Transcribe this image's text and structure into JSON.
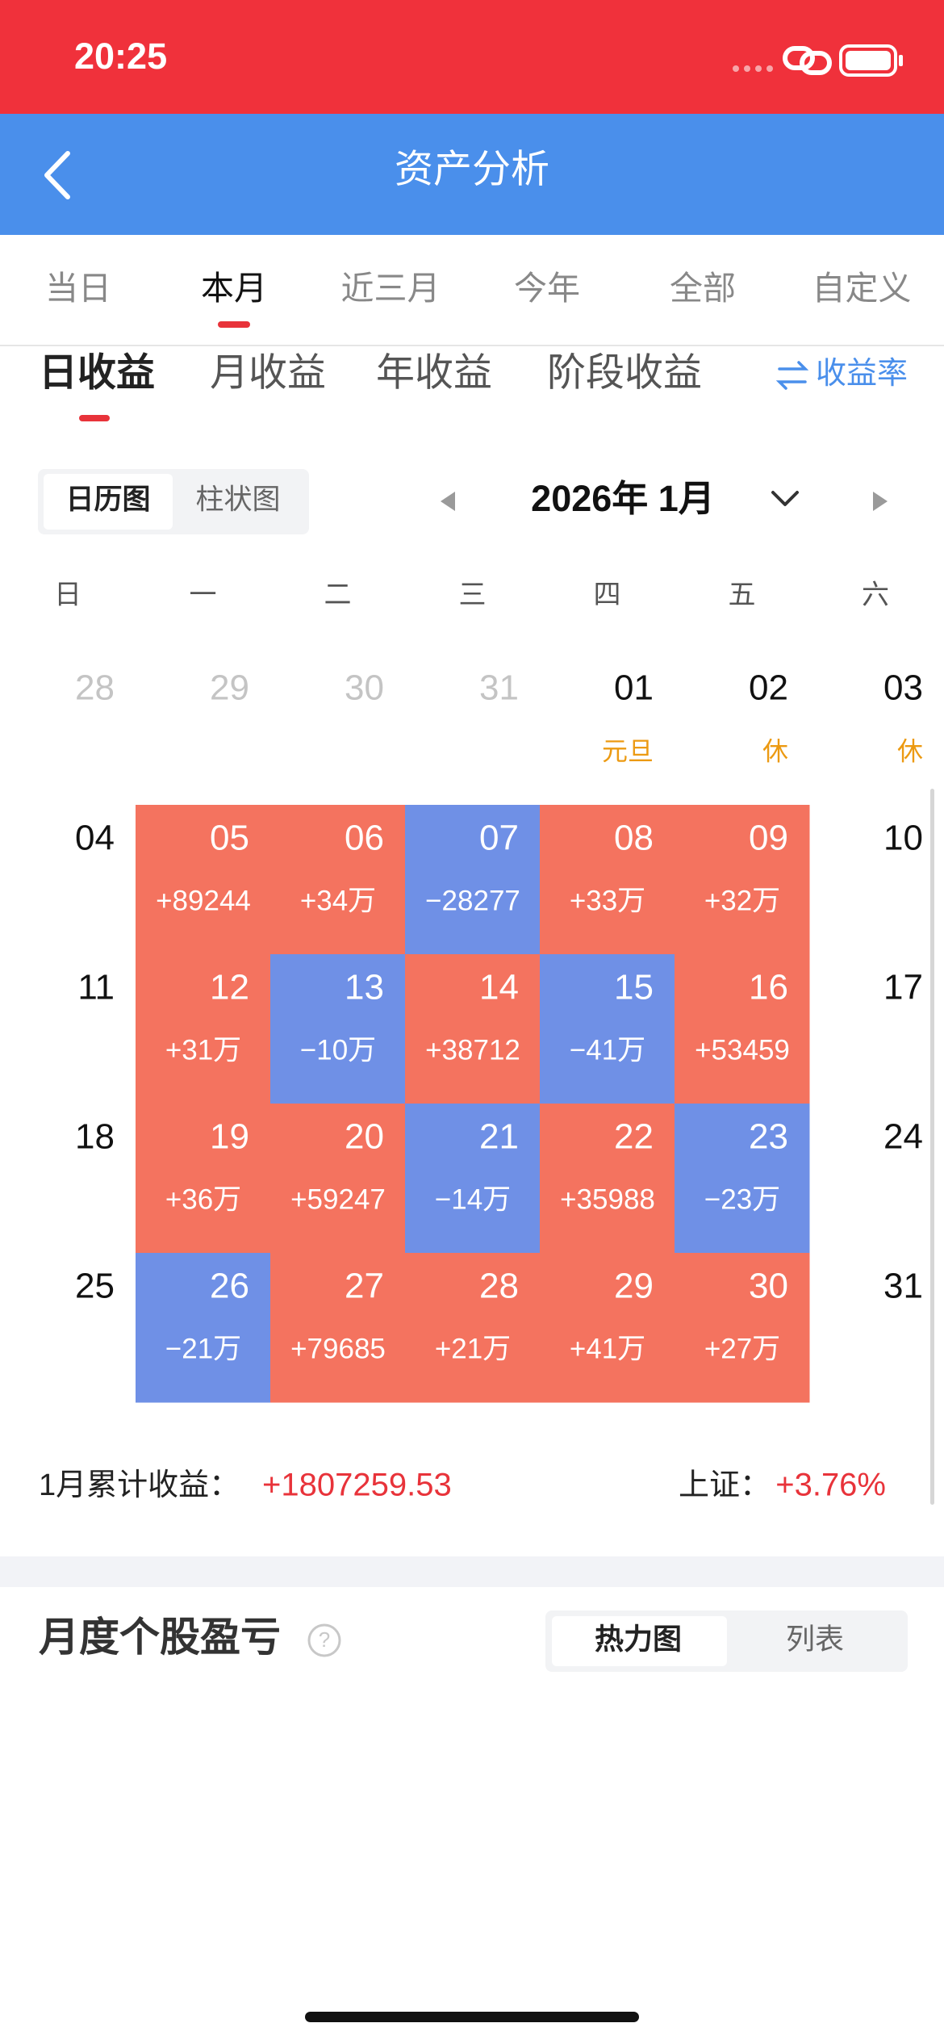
{
  "status_bar": {
    "time": "20:25"
  },
  "header": {
    "title": "资产分析"
  },
  "period_tabs": {
    "items": [
      "当日",
      "本月",
      "近三月",
      "今年",
      "全部",
      "自定义"
    ],
    "active": 1
  },
  "profit_tabs": {
    "items": [
      "日收益",
      "月收益",
      "年收益",
      "阶段收益"
    ],
    "active": 0,
    "toggle": "收益率"
  },
  "view_toggle": {
    "items": [
      "日历图",
      "柱状图"
    ],
    "active": 0
  },
  "month_selector": {
    "label": "2026年 1月"
  },
  "calendar": {
    "weekdays": [
      "日",
      "一",
      "二",
      "三",
      "四",
      "五",
      "六"
    ],
    "weeks": [
      [
        {
          "day": "28",
          "muted": true
        },
        {
          "day": "29",
          "muted": true
        },
        {
          "day": "30",
          "muted": true
        },
        {
          "day": "31",
          "muted": true
        },
        {
          "day": "01",
          "note": "元旦"
        },
        {
          "day": "02",
          "note": "休"
        },
        {
          "day": "03",
          "note": "休"
        }
      ],
      [
        {
          "day": "04"
        },
        {
          "day": "05",
          "value": "+89244"
        },
        {
          "day": "06",
          "value": "+34万"
        },
        {
          "day": "07",
          "value": "−28277"
        },
        {
          "day": "08",
          "value": "+33万"
        },
        {
          "day": "09",
          "value": "+32万"
        },
        {
          "day": "10"
        }
      ],
      [
        {
          "day": "11"
        },
        {
          "day": "12",
          "value": "+31万"
        },
        {
          "day": "13",
          "value": "−10万"
        },
        {
          "day": "14",
          "value": "+38712"
        },
        {
          "day": "15",
          "value": "−41万"
        },
        {
          "day": "16",
          "value": "+53459"
        },
        {
          "day": "17"
        }
      ],
      [
        {
          "day": "18"
        },
        {
          "day": "19",
          "value": "+36万"
        },
        {
          "day": "20",
          "value": "+59247"
        },
        {
          "day": "21",
          "value": "−14万"
        },
        {
          "day": "22",
          "value": "+35988"
        },
        {
          "day": "23",
          "value": "−23万"
        },
        {
          "day": "24"
        }
      ],
      [
        {
          "day": "25"
        },
        {
          "day": "26",
          "value": "−21万"
        },
        {
          "day": "27",
          "value": "+79685"
        },
        {
          "day": "28",
          "value": "+21万"
        },
        {
          "day": "29",
          "value": "+41万"
        },
        {
          "day": "30",
          "value": "+27万"
        },
        {
          "day": "31"
        }
      ]
    ]
  },
  "summary": {
    "label": "1月累计收益：",
    "value": "+1807259.53",
    "index_label": "上证：",
    "index_value": "+3.76%"
  },
  "section": {
    "title": "月度个股盈亏",
    "toggle": {
      "items": [
        "热力图",
        "列表"
      ],
      "active": 0
    }
  }
}
